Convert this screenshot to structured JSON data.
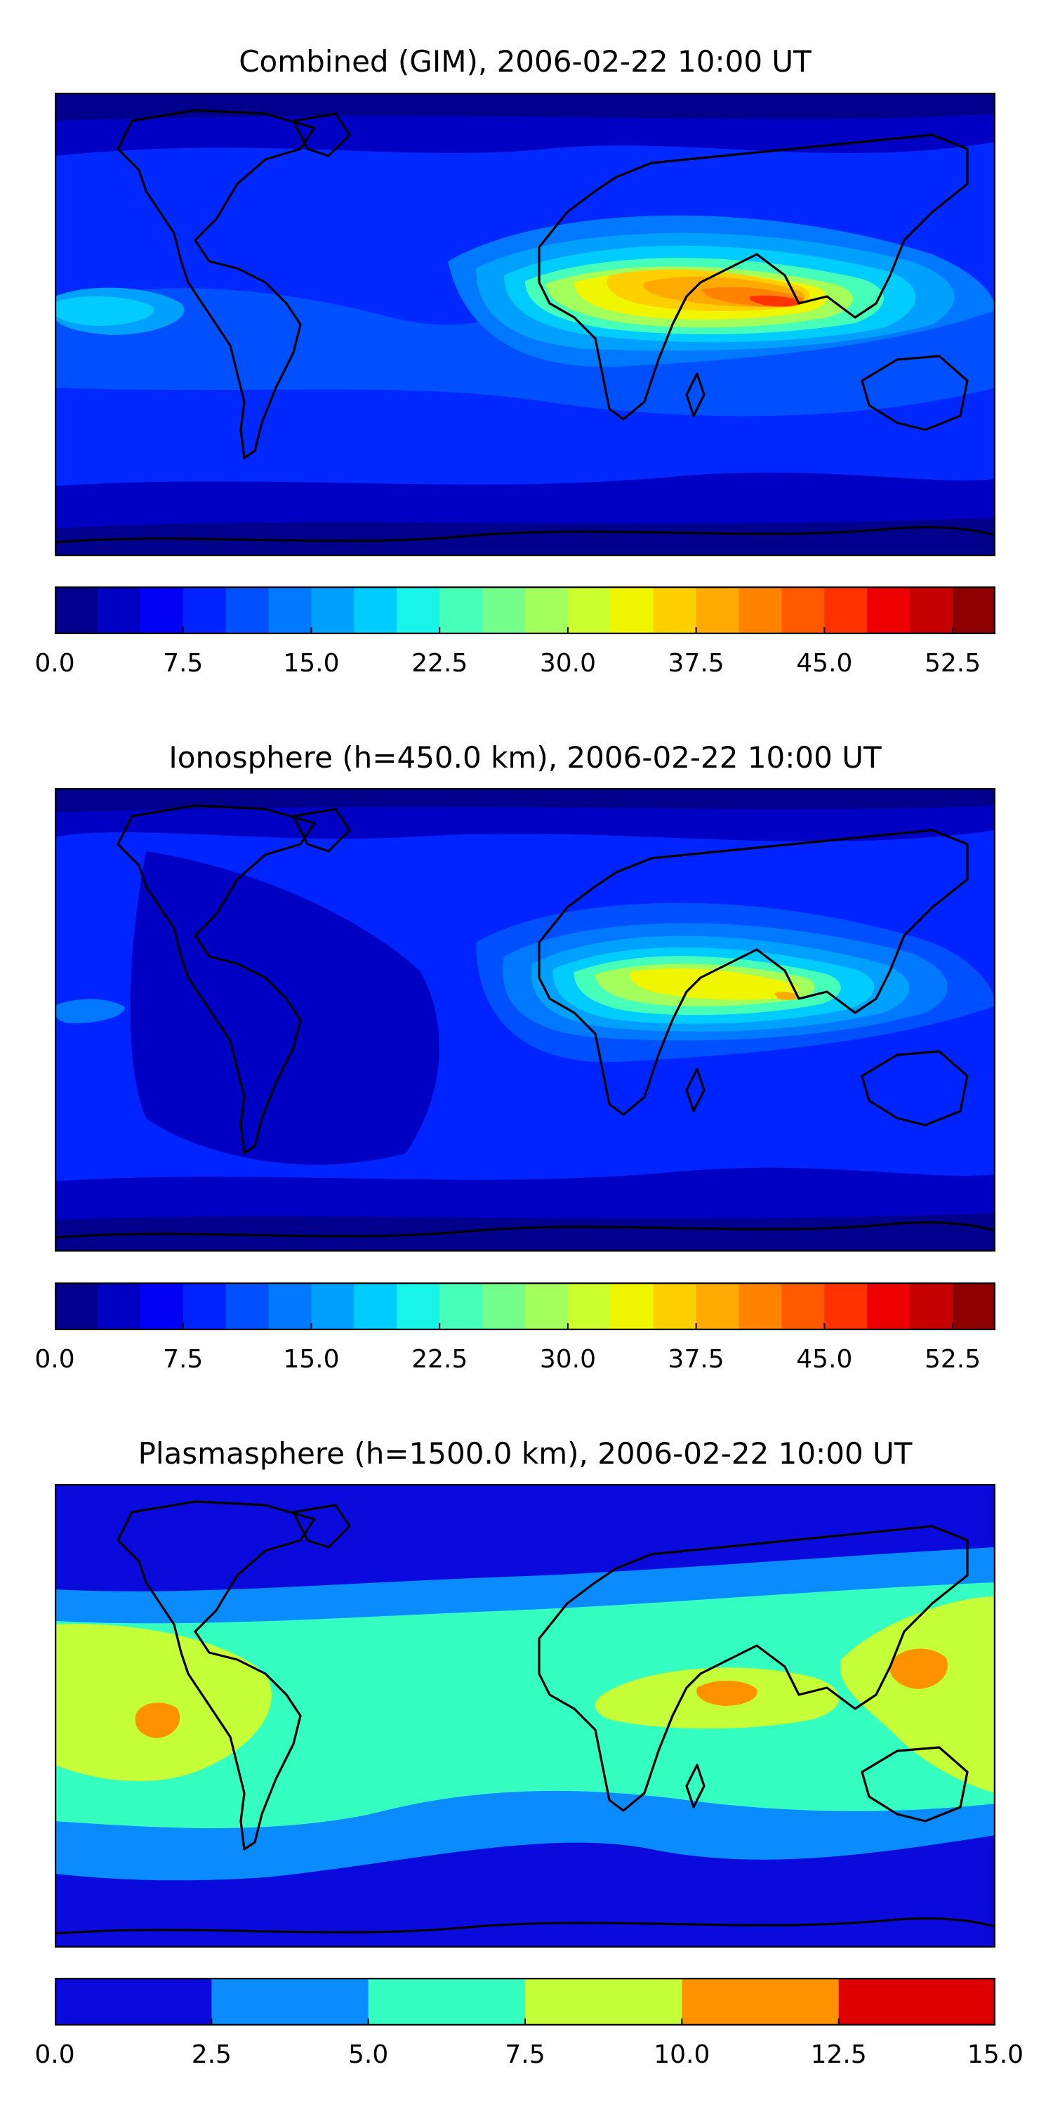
{
  "panels": [
    {
      "title": "Combined (GIM), 2006-02-22 10:00 UT",
      "colorbar": {
        "levels": [
          0,
          2.5,
          5,
          7.5,
          10,
          12.5,
          15,
          17.5,
          20,
          22.5,
          25,
          27.5,
          30,
          32.5,
          35,
          37.5,
          40,
          42.5,
          45,
          47.5,
          50,
          52.5,
          55
        ],
        "colors": [
          "#00008c",
          "#0000c4",
          "#0000f5",
          "#0024ff",
          "#0050ff",
          "#0078ff",
          "#00a0ff",
          "#00ccff",
          "#18f4e8",
          "#46ffb8",
          "#74ff8a",
          "#a2ff5c",
          "#ccff2e",
          "#f0f500",
          "#ffd000",
          "#ffaa00",
          "#ff8200",
          "#ff5a00",
          "#ff3200",
          "#ec0000",
          "#c40000",
          "#8c0000"
        ],
        "ticks": [
          "0.0",
          "7.5",
          "15.0",
          "22.5",
          "30.0",
          "37.5",
          "45.0",
          "52.5"
        ],
        "tick_values": [
          0,
          7.5,
          15,
          22.5,
          30,
          37.5,
          45,
          52.5
        ]
      }
    },
    {
      "title": "Ionosphere  (h=450.0 km), 2006-02-22 10:00 UT",
      "colorbar": {
        "levels": [
          0,
          2.5,
          5,
          7.5,
          10,
          12.5,
          15,
          17.5,
          20,
          22.5,
          25,
          27.5,
          30,
          32.5,
          35,
          37.5,
          40,
          42.5,
          45,
          47.5,
          50,
          52.5,
          55
        ],
        "colors": [
          "#00008c",
          "#0000c4",
          "#0000f5",
          "#0024ff",
          "#0050ff",
          "#0078ff",
          "#00a0ff",
          "#00ccff",
          "#18f4e8",
          "#46ffb8",
          "#74ff8a",
          "#a2ff5c",
          "#ccff2e",
          "#f0f500",
          "#ffd000",
          "#ffaa00",
          "#ff8200",
          "#ff5a00",
          "#ff3200",
          "#ec0000",
          "#c40000",
          "#8c0000"
        ],
        "ticks": [
          "0.0",
          "7.5",
          "15.0",
          "22.5",
          "30.0",
          "37.5",
          "45.0",
          "52.5"
        ],
        "tick_values": [
          0,
          7.5,
          15,
          22.5,
          30,
          37.5,
          45,
          52.5
        ]
      }
    },
    {
      "title": "Plasmasphere (h=1500.0 km), 2006-02-22 10:00 UT",
      "colorbar": {
        "levels": [
          0,
          2.5,
          5,
          7.5,
          10,
          12.5,
          15
        ],
        "colors": [
          "#0a0adc",
          "#0a8cff",
          "#34ffc0",
          "#c4ff38",
          "#ff9200",
          "#de0000"
        ],
        "ticks": [
          "0.0",
          "2.5",
          "5.0",
          "7.5",
          "10.0",
          "12.5",
          "15.0"
        ],
        "tick_values": [
          0,
          2.5,
          5,
          7.5,
          10,
          12.5,
          15
        ]
      }
    }
  ]
}
